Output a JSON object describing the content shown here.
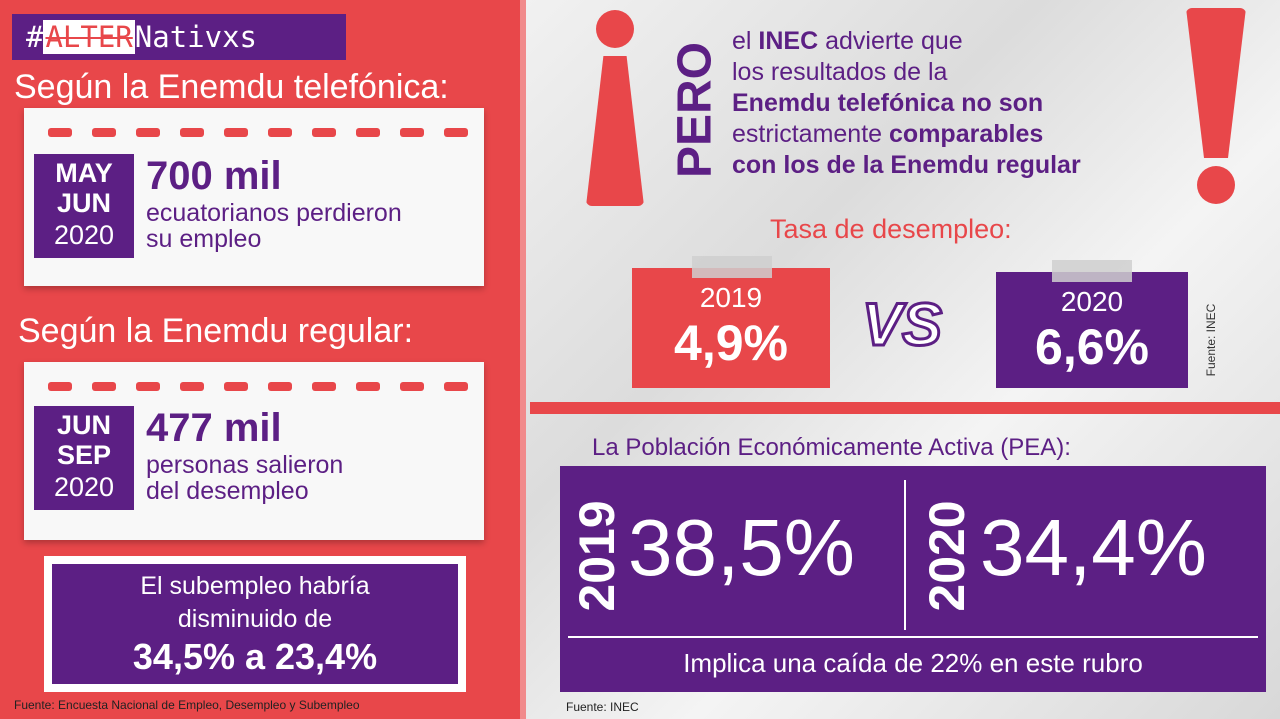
{
  "brand": {
    "hashtag": "#",
    "alter": "ALTER",
    "rest": "Nativxs"
  },
  "left": {
    "heading_tel": "Según la Enemdu telefónica:",
    "card1": {
      "line1": "MAY",
      "line2": "JUN",
      "year": "2020",
      "big": "700 mil",
      "desc1": "ecuatorianos perdieron",
      "desc2": "su empleo"
    },
    "heading_reg": "Según la Enemdu regular:",
    "card2": {
      "line1": "JUN",
      "line2": "SEP",
      "year": "2020",
      "big": "477 mil",
      "desc1": "personas salieron",
      "desc2": "del desempleo"
    },
    "subempleo": {
      "line1": "El subempleo habría",
      "line2": "disminuido de",
      "line3": "34,5% a 23,4%"
    },
    "source": "Fuente: Encuesta Nacional de Empleo, Desempleo y Subempleo"
  },
  "right": {
    "pero": "PERO",
    "statement": {
      "l1a": "el ",
      "l1b": "INEC",
      "l1c": " advierte que",
      "l2": "los resultados de la",
      "l3": "Enemdu telefónica no son",
      "l4a": "estrictamente ",
      "l4b": "comparables",
      "l5": "con los de la Enemdu regular"
    },
    "tasa_title": "Tasa de desempleo:",
    "tasa": [
      {
        "year": "2019",
        "value": "4,9%"
      },
      {
        "year": "2020",
        "value": "6,6%"
      }
    ],
    "vs": "VS",
    "source_side": "Fuente: INEC",
    "pea_title": "La Población Económicamente Activa (PEA):",
    "pea": [
      {
        "year": "2019",
        "value": "38,5%"
      },
      {
        "year": "2020",
        "value": "34,4%"
      }
    ],
    "pea_note": "Implica una caída de 22% en este rubro",
    "source": "Fuente: INEC"
  },
  "colors": {
    "red": "#e8474a",
    "purple": "#5c1f84"
  }
}
